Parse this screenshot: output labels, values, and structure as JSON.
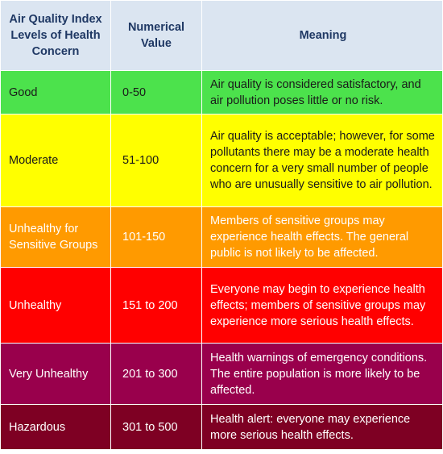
{
  "header": {
    "level": "Air Quality Index Levels of Health Concern",
    "value": "Numerical Value",
    "meaning": "Meaning"
  },
  "rows": [
    {
      "level": "Good",
      "value": "0-50",
      "meaning": "Air quality is considered satisfactory, and air pollution poses little or no risk.",
      "color": "#4ce24c"
    },
    {
      "level": "Moderate",
      "value": "51-100",
      "meaning": "Air quality is acceptable; however, for some pollutants there may be a moderate health concern for a very small number of people who are unusually sensitive to air pollution.",
      "color": "#ffff00"
    },
    {
      "level": "Unhealthy for Sensitive Groups",
      "value": "101-150",
      "meaning": "Members of sensitive groups may experience health effects. The general public is not likely to be affected.",
      "color": "#ff9a00"
    },
    {
      "level": "Unhealthy",
      "value": "151 to 200",
      "meaning": "Everyone may begin to experience health effects; members of sensitive groups may experience more serious health effects.",
      "color": "#ff0000"
    },
    {
      "level": "Very Unhealthy",
      "value": "201 to 300",
      "meaning": "Health warnings of emergency conditions. The entire population is more likely to be affected.",
      "color": "#99004c"
    },
    {
      "level": "Hazardous",
      "value": "301 to 500",
      "meaning": "Health alert: everyone may experience more serious health effects.",
      "color": "#7e0023"
    }
  ]
}
